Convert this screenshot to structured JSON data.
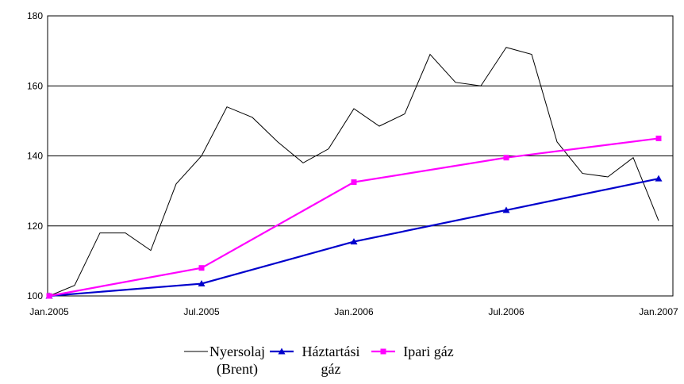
{
  "chart_data": {
    "type": "line",
    "categories": [
      "Jan.2005",
      null,
      null,
      null,
      null,
      null,
      "Jul.2005",
      null,
      null,
      null,
      null,
      null,
      "Jan.2006",
      null,
      null,
      null,
      null,
      null,
      "Jul.2006",
      null,
      null,
      null,
      null,
      null,
      "Jan.2007"
    ],
    "series": [
      {
        "name": "Nyersolaj (Brent)",
        "color": "#000000",
        "marker": "none",
        "values": [
          100,
          103,
          118,
          118,
          113,
          132,
          140,
          154,
          151,
          144,
          138,
          142,
          153.5,
          148.5,
          152,
          169,
          161,
          160,
          171,
          169,
          144,
          135,
          134,
          139.5,
          121.5
        ]
      },
      {
        "name": "Háztartási gáz",
        "color": "#0000cc",
        "marker": "triangle",
        "x": [
          "Jan.2005",
          "Jul.2005",
          "Jan.2006",
          "Jul.2006",
          "Jan.2007"
        ],
        "values": [
          100,
          103.5,
          115.5,
          124.5,
          133.5
        ]
      },
      {
        "name": "Ipari gáz",
        "color": "#ff00ff",
        "marker": "square",
        "x": [
          "Jan.2005",
          "Jul.2005",
          "Jan.2006",
          "Jul.2006",
          "Jan.2007"
        ],
        "values": [
          100,
          108,
          132.5,
          139.5,
          145
        ]
      }
    ],
    "ylim": [
      100,
      180
    ],
    "yticks": [
      100,
      120,
      140,
      160,
      180
    ],
    "grid": true,
    "legend": "bottom"
  }
}
